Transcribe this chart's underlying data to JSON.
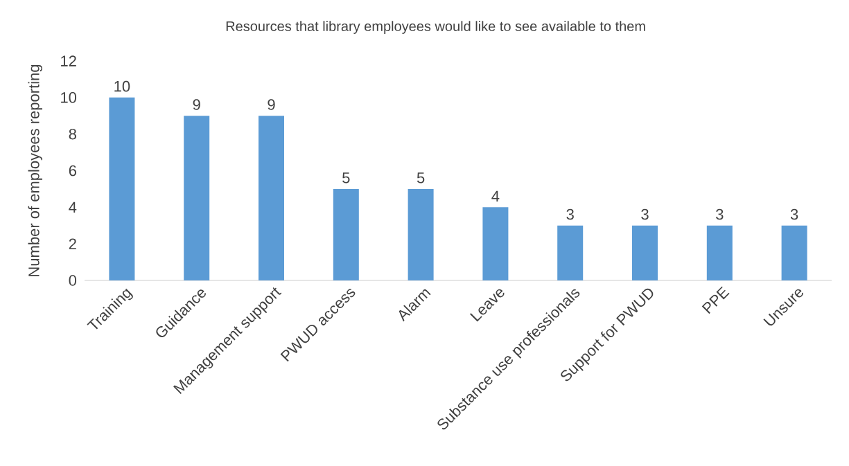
{
  "chart_data": {
    "type": "bar",
    "title": "Resources that library employees would like to see available to them",
    "ylabel": "Number  of employees reporting",
    "categories": [
      "Training",
      "Guidance",
      "Management support",
      "PWUD access",
      "Alarm",
      "Leave",
      "Substance use professionals",
      "Support for PWUD",
      "PPE",
      "Unsure"
    ],
    "values": [
      10,
      9,
      9,
      5,
      5,
      4,
      3,
      3,
      3,
      3
    ],
    "color": "#5b9bd5",
    "ylim": [
      0,
      12
    ],
    "yticks": [
      0,
      2,
      4,
      6,
      8,
      10,
      12
    ],
    "grid": false,
    "data_labels": true
  }
}
